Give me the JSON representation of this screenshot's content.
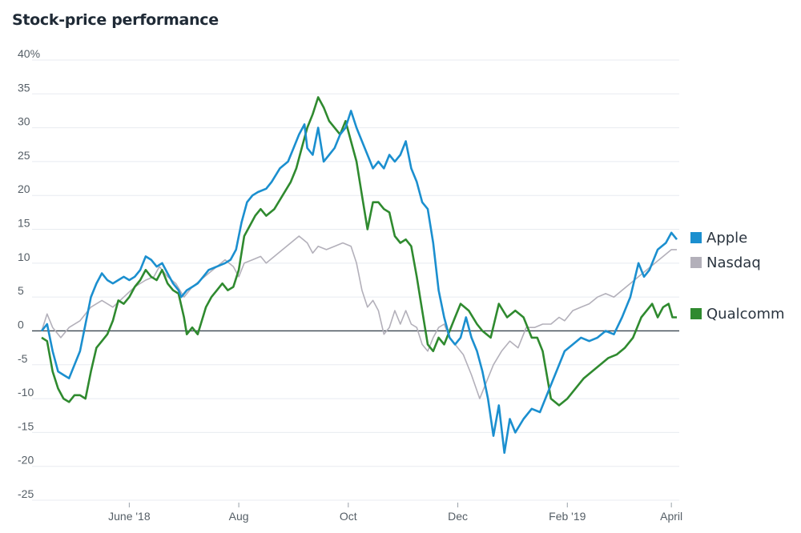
{
  "chart_data": {
    "type": "line",
    "title": "Stock-price performance",
    "ylim": [
      -25,
      40
    ],
    "xlim": [
      0,
      11.6
    ],
    "y_ticks": [
      {
        "value": 40,
        "label": "40%"
      },
      {
        "value": 35,
        "label": "35"
      },
      {
        "value": 30,
        "label": "30"
      },
      {
        "value": 25,
        "label": "25"
      },
      {
        "value": 20,
        "label": "20"
      },
      {
        "value": 15,
        "label": "15"
      },
      {
        "value": 10,
        "label": "10"
      },
      {
        "value": 5,
        "label": "5"
      },
      {
        "value": 0,
        "label": "0"
      },
      {
        "value": -5,
        "label": "-5"
      },
      {
        "value": -10,
        "label": "-10"
      },
      {
        "value": -15,
        "label": "-15"
      },
      {
        "value": -20,
        "label": "-20"
      },
      {
        "value": -25,
        "label": "-25"
      }
    ],
    "x_ticks": [
      {
        "value": 1.6,
        "label": "June '18"
      },
      {
        "value": 3.6,
        "label": "Aug"
      },
      {
        "value": 5.6,
        "label": "Oct"
      },
      {
        "value": 7.6,
        "label": "Dec"
      },
      {
        "value": 9.6,
        "label": "Feb '19"
      },
      {
        "value": 11.5,
        "label": "April"
      }
    ],
    "grid": true,
    "legend": "right",
    "series": [
      {
        "name": "Nasdaq",
        "color": "#b3b0ba",
        "points": [
          [
            0,
            0
          ],
          [
            0.1,
            2.5
          ],
          [
            0.2,
            0.5
          ],
          [
            0.35,
            -1
          ],
          [
            0.5,
            0.5
          ],
          [
            0.7,
            1.5
          ],
          [
            0.9,
            3.5
          ],
          [
            1.1,
            4.5
          ],
          [
            1.3,
            3.5
          ],
          [
            1.5,
            5
          ],
          [
            1.7,
            6.5
          ],
          [
            1.9,
            7.5
          ],
          [
            2.05,
            8
          ],
          [
            2.15,
            9.5
          ],
          [
            2.3,
            8
          ],
          [
            2.45,
            7
          ],
          [
            2.6,
            5
          ],
          [
            2.75,
            6.5
          ],
          [
            2.9,
            7.5
          ],
          [
            3.05,
            8.5
          ],
          [
            3.2,
            9.5
          ],
          [
            3.35,
            10.5
          ],
          [
            3.5,
            9.5
          ],
          [
            3.6,
            8
          ],
          [
            3.7,
            10
          ],
          [
            3.85,
            10.5
          ],
          [
            4.0,
            11
          ],
          [
            4.1,
            10
          ],
          [
            4.25,
            11
          ],
          [
            4.4,
            12
          ],
          [
            4.55,
            13
          ],
          [
            4.7,
            14
          ],
          [
            4.85,
            13
          ],
          [
            4.95,
            11.5
          ],
          [
            5.05,
            12.5
          ],
          [
            5.2,
            12
          ],
          [
            5.35,
            12.5
          ],
          [
            5.5,
            13
          ],
          [
            5.65,
            12.5
          ],
          [
            5.75,
            10
          ],
          [
            5.85,
            6
          ],
          [
            5.95,
            3.5
          ],
          [
            6.05,
            4.5
          ],
          [
            6.15,
            3
          ],
          [
            6.25,
            -0.5
          ],
          [
            6.35,
            0.5
          ],
          [
            6.45,
            3
          ],
          [
            6.55,
            1
          ],
          [
            6.65,
            3
          ],
          [
            6.75,
            1
          ],
          [
            6.85,
            0.5
          ],
          [
            6.95,
            -2
          ],
          [
            7.05,
            -3
          ],
          [
            7.15,
            -1
          ],
          [
            7.25,
            0.5
          ],
          [
            7.35,
            1
          ],
          [
            7.45,
            -1
          ],
          [
            7.55,
            -2
          ],
          [
            7.7,
            -3.5
          ],
          [
            7.85,
            -6.5
          ],
          [
            8.0,
            -10
          ],
          [
            8.1,
            -8
          ],
          [
            8.25,
            -5
          ],
          [
            8.4,
            -3
          ],
          [
            8.55,
            -1.5
          ],
          [
            8.7,
            -2.5
          ],
          [
            8.85,
            0.5
          ],
          [
            9.0,
            0.5
          ],
          [
            9.15,
            1
          ],
          [
            9.3,
            1
          ],
          [
            9.45,
            2
          ],
          [
            9.55,
            1.5
          ],
          [
            9.7,
            3
          ],
          [
            9.85,
            3.5
          ],
          [
            10.0,
            4
          ],
          [
            10.15,
            5
          ],
          [
            10.3,
            5.5
          ],
          [
            10.45,
            5
          ],
          [
            10.6,
            6
          ],
          [
            10.75,
            7
          ],
          [
            10.9,
            8
          ],
          [
            11.05,
            9
          ],
          [
            11.2,
            10
          ],
          [
            11.35,
            11
          ],
          [
            11.5,
            12
          ],
          [
            11.6,
            12
          ]
        ]
      },
      {
        "name": "Qualcomm",
        "color": "#2f8a2f",
        "points": [
          [
            0,
            -1
          ],
          [
            0.1,
            -1.5
          ],
          [
            0.2,
            -6
          ],
          [
            0.3,
            -8.5
          ],
          [
            0.4,
            -10
          ],
          [
            0.5,
            -10.5
          ],
          [
            0.6,
            -9.5
          ],
          [
            0.7,
            -9.5
          ],
          [
            0.8,
            -10
          ],
          [
            0.9,
            -6
          ],
          [
            1.0,
            -2.5
          ],
          [
            1.1,
            -1.5
          ],
          [
            1.2,
            -0.5
          ],
          [
            1.3,
            1.5
          ],
          [
            1.4,
            4.5
          ],
          [
            1.5,
            4
          ],
          [
            1.6,
            5
          ],
          [
            1.7,
            6.5
          ],
          [
            1.8,
            7.5
          ],
          [
            1.9,
            9
          ],
          [
            2.0,
            8
          ],
          [
            2.1,
            7.5
          ],
          [
            2.2,
            9
          ],
          [
            2.3,
            7
          ],
          [
            2.4,
            6
          ],
          [
            2.5,
            5.5
          ],
          [
            2.6,
            2
          ],
          [
            2.65,
            -0.5
          ],
          [
            2.75,
            0.5
          ],
          [
            2.85,
            -0.5
          ],
          [
            3.0,
            3.5
          ],
          [
            3.1,
            5
          ],
          [
            3.2,
            6
          ],
          [
            3.3,
            7
          ],
          [
            3.4,
            6
          ],
          [
            3.5,
            6.5
          ],
          [
            3.6,
            9
          ],
          [
            3.7,
            14
          ],
          [
            3.8,
            15.5
          ],
          [
            3.9,
            17
          ],
          [
            4.0,
            18
          ],
          [
            4.1,
            17
          ],
          [
            4.25,
            18
          ],
          [
            4.4,
            20
          ],
          [
            4.55,
            22
          ],
          [
            4.65,
            24
          ],
          [
            4.75,
            27
          ],
          [
            4.85,
            30
          ],
          [
            4.95,
            32
          ],
          [
            5.05,
            34.5
          ],
          [
            5.15,
            33
          ],
          [
            5.25,
            31
          ],
          [
            5.35,
            30
          ],
          [
            5.45,
            29
          ],
          [
            5.55,
            31
          ],
          [
            5.65,
            28
          ],
          [
            5.75,
            25
          ],
          [
            5.85,
            20
          ],
          [
            5.95,
            15
          ],
          [
            6.05,
            19
          ],
          [
            6.15,
            19
          ],
          [
            6.25,
            18
          ],
          [
            6.35,
            17.5
          ],
          [
            6.45,
            14
          ],
          [
            6.55,
            13
          ],
          [
            6.65,
            13.5
          ],
          [
            6.75,
            12.5
          ],
          [
            6.85,
            8
          ],
          [
            6.95,
            3
          ],
          [
            7.05,
            -2
          ],
          [
            7.15,
            -3
          ],
          [
            7.25,
            -1
          ],
          [
            7.35,
            -2
          ],
          [
            7.45,
            0
          ],
          [
            7.55,
            2
          ],
          [
            7.65,
            4
          ],
          [
            7.8,
            3
          ],
          [
            7.95,
            1
          ],
          [
            8.05,
            0
          ],
          [
            8.2,
            -1
          ],
          [
            8.35,
            4
          ],
          [
            8.5,
            2
          ],
          [
            8.65,
            3
          ],
          [
            8.8,
            2
          ],
          [
            8.95,
            -1
          ],
          [
            9.05,
            -1
          ],
          [
            9.15,
            -3
          ],
          [
            9.3,
            -10
          ],
          [
            9.45,
            -11
          ],
          [
            9.6,
            -10
          ],
          [
            9.75,
            -8.5
          ],
          [
            9.9,
            -7
          ],
          [
            10.05,
            -6
          ],
          [
            10.2,
            -5
          ],
          [
            10.35,
            -4
          ],
          [
            10.5,
            -3.5
          ],
          [
            10.65,
            -2.5
          ],
          [
            10.8,
            -1
          ],
          [
            10.95,
            2
          ],
          [
            11.05,
            3
          ],
          [
            11.15,
            4
          ],
          [
            11.25,
            2
          ],
          [
            11.35,
            3.5
          ],
          [
            11.45,
            4
          ],
          [
            11.52,
            2
          ],
          [
            11.6,
            2
          ]
        ]
      },
      {
        "name": "Apple",
        "color": "#1b8fcf",
        "points": [
          [
            0,
            0
          ],
          [
            0.1,
            1
          ],
          [
            0.2,
            -3
          ],
          [
            0.3,
            -6
          ],
          [
            0.4,
            -6.5
          ],
          [
            0.5,
            -7
          ],
          [
            0.6,
            -5
          ],
          [
            0.7,
            -3
          ],
          [
            0.8,
            1
          ],
          [
            0.9,
            5
          ],
          [
            1.0,
            7
          ],
          [
            1.1,
            8.5
          ],
          [
            1.2,
            7.5
          ],
          [
            1.3,
            7
          ],
          [
            1.4,
            7.5
          ],
          [
            1.5,
            8
          ],
          [
            1.6,
            7.5
          ],
          [
            1.7,
            8
          ],
          [
            1.8,
            9
          ],
          [
            1.9,
            11
          ],
          [
            2.0,
            10.5
          ],
          [
            2.1,
            9.5
          ],
          [
            2.2,
            10
          ],
          [
            2.3,
            8.5
          ],
          [
            2.4,
            7
          ],
          [
            2.5,
            6
          ],
          [
            2.55,
            5
          ],
          [
            2.65,
            6
          ],
          [
            2.75,
            6.5
          ],
          [
            2.85,
            7
          ],
          [
            2.95,
            8
          ],
          [
            3.05,
            9
          ],
          [
            3.2,
            9.5
          ],
          [
            3.35,
            10
          ],
          [
            3.45,
            10.5
          ],
          [
            3.55,
            12
          ],
          [
            3.65,
            16
          ],
          [
            3.75,
            19
          ],
          [
            3.85,
            20
          ],
          [
            3.95,
            20.5
          ],
          [
            4.1,
            21
          ],
          [
            4.2,
            22
          ],
          [
            4.35,
            24
          ],
          [
            4.5,
            25
          ],
          [
            4.6,
            27
          ],
          [
            4.7,
            29
          ],
          [
            4.8,
            30.5
          ],
          [
            4.85,
            27
          ],
          [
            4.95,
            26
          ],
          [
            5.05,
            30
          ],
          [
            5.15,
            25
          ],
          [
            5.25,
            26
          ],
          [
            5.35,
            27
          ],
          [
            5.45,
            29
          ],
          [
            5.55,
            30
          ],
          [
            5.65,
            32.5
          ],
          [
            5.75,
            30
          ],
          [
            5.85,
            28
          ],
          [
            5.95,
            26
          ],
          [
            6.05,
            24
          ],
          [
            6.15,
            25
          ],
          [
            6.25,
            24
          ],
          [
            6.35,
            26
          ],
          [
            6.45,
            25
          ],
          [
            6.55,
            26
          ],
          [
            6.65,
            28
          ],
          [
            6.75,
            24
          ],
          [
            6.85,
            22
          ],
          [
            6.95,
            19
          ],
          [
            7.05,
            18
          ],
          [
            7.15,
            13
          ],
          [
            7.25,
            6
          ],
          [
            7.35,
            2
          ],
          [
            7.45,
            -1
          ],
          [
            7.55,
            -2
          ],
          [
            7.65,
            -1
          ],
          [
            7.75,
            2
          ],
          [
            7.85,
            -1
          ],
          [
            7.95,
            -3
          ],
          [
            8.05,
            -6
          ],
          [
            8.15,
            -10
          ],
          [
            8.25,
            -15.5
          ],
          [
            8.35,
            -11
          ],
          [
            8.45,
            -18
          ],
          [
            8.55,
            -13
          ],
          [
            8.65,
            -15
          ],
          [
            8.8,
            -13
          ],
          [
            8.95,
            -11.5
          ],
          [
            9.1,
            -12
          ],
          [
            9.25,
            -9
          ],
          [
            9.4,
            -6
          ],
          [
            9.55,
            -3
          ],
          [
            9.7,
            -2
          ],
          [
            9.85,
            -1
          ],
          [
            10.0,
            -1.5
          ],
          [
            10.15,
            -1
          ],
          [
            10.3,
            0
          ],
          [
            10.45,
            -0.5
          ],
          [
            10.6,
            2
          ],
          [
            10.75,
            5
          ],
          [
            10.9,
            10
          ],
          [
            11.0,
            8
          ],
          [
            11.1,
            9
          ],
          [
            11.25,
            12
          ],
          [
            11.4,
            13
          ],
          [
            11.5,
            14.5
          ],
          [
            11.6,
            13.5
          ]
        ]
      }
    ]
  }
}
